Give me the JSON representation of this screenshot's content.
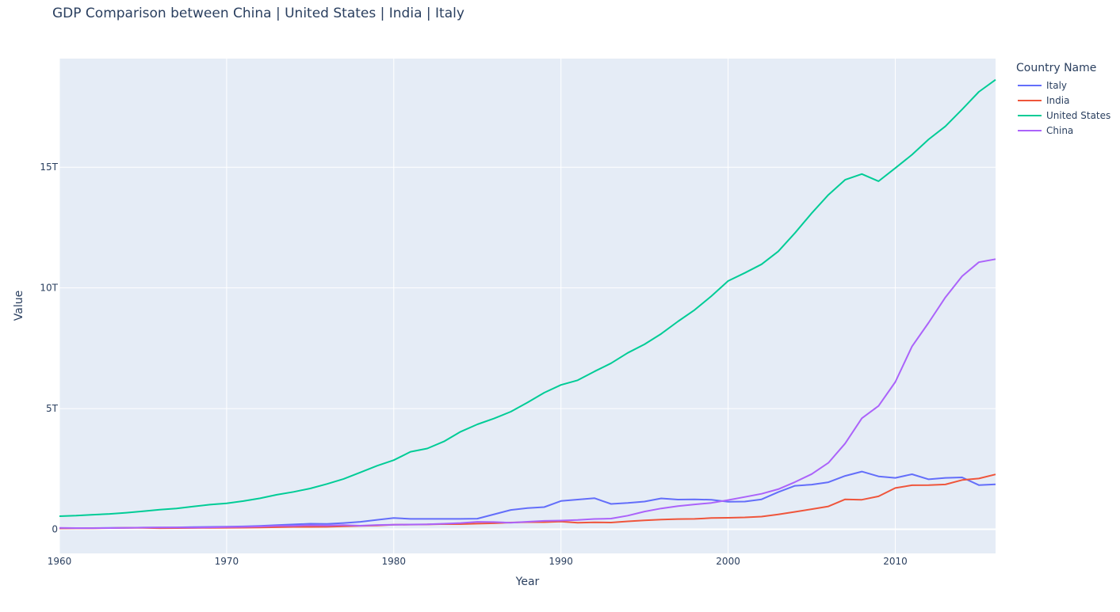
{
  "chart_data": {
    "type": "line",
    "title": "GDP Comparison between China | United States | India | Italy",
    "xlabel": "Year",
    "ylabel": "Value",
    "xlim": [
      1960,
      2016
    ],
    "ylim": [
      -1000000000000,
      19500000000000
    ],
    "x_ticks": [
      {
        "value": 1960,
        "label": "1960"
      },
      {
        "value": 1970,
        "label": "1970"
      },
      {
        "value": 1980,
        "label": "1980"
      },
      {
        "value": 1990,
        "label": "1990"
      },
      {
        "value": 2000,
        "label": "2000"
      },
      {
        "value": 2010,
        "label": "2010"
      }
    ],
    "y_ticks": [
      {
        "value": 0,
        "label": "0"
      },
      {
        "value": 5000000000000,
        "label": "5T"
      },
      {
        "value": 10000000000000,
        "label": "10T"
      },
      {
        "value": 15000000000000,
        "label": "15T"
      }
    ],
    "grid": true,
    "legend_title": "Country Name",
    "legend_position": "top-right",
    "x": [
      1960,
      1961,
      1962,
      1963,
      1964,
      1965,
      1966,
      1967,
      1968,
      1969,
      1970,
      1971,
      1972,
      1973,
      1974,
      1975,
      1976,
      1977,
      1978,
      1979,
      1980,
      1981,
      1982,
      1983,
      1984,
      1985,
      1986,
      1987,
      1988,
      1989,
      1990,
      1991,
      1992,
      1993,
      1994,
      1995,
      1996,
      1997,
      1998,
      1999,
      2000,
      2001,
      2002,
      2003,
      2004,
      2005,
      2006,
      2007,
      2008,
      2009,
      2010,
      2011,
      2012,
      2013,
      2014,
      2015,
      2016
    ],
    "series": [
      {
        "name": "Italy",
        "color": "#636efa",
        "values_T": [
          0.04,
          0.045,
          0.05,
          0.056,
          0.062,
          0.068,
          0.074,
          0.08,
          0.088,
          0.1,
          0.11,
          0.12,
          0.14,
          0.17,
          0.2,
          0.23,
          0.22,
          0.26,
          0.31,
          0.39,
          0.47,
          0.43,
          0.43,
          0.43,
          0.43,
          0.44,
          0.62,
          0.8,
          0.88,
          0.92,
          1.17,
          1.23,
          1.29,
          1.05,
          1.09,
          1.15,
          1.28,
          1.23,
          1.24,
          1.22,
          1.14,
          1.15,
          1.24,
          1.54,
          1.8,
          1.85,
          1.95,
          2.21,
          2.39,
          2.19,
          2.13,
          2.28,
          2.07,
          2.13,
          2.15,
          1.83,
          1.86
        ]
      },
      {
        "name": "India",
        "color": "#ef553b",
        "values_T": [
          0.037,
          0.039,
          0.042,
          0.049,
          0.056,
          0.059,
          0.046,
          0.05,
          0.053,
          0.058,
          0.063,
          0.067,
          0.071,
          0.085,
          0.099,
          0.098,
          0.103,
          0.121,
          0.137,
          0.153,
          0.186,
          0.193,
          0.2,
          0.218,
          0.212,
          0.233,
          0.249,
          0.279,
          0.297,
          0.296,
          0.321,
          0.27,
          0.288,
          0.279,
          0.327,
          0.367,
          0.4,
          0.423,
          0.429,
          0.467,
          0.476,
          0.494,
          0.524,
          0.618,
          0.722,
          0.834,
          0.949,
          1.239,
          1.224,
          1.365,
          1.708,
          1.823,
          1.828,
          1.857,
          2.039,
          2.104,
          2.274
        ]
      },
      {
        "name": "United States",
        "color": "#00cc96",
        "values_T": [
          0.543,
          0.563,
          0.605,
          0.638,
          0.686,
          0.744,
          0.815,
          0.862,
          0.943,
          1.019,
          1.075,
          1.168,
          1.282,
          1.429,
          1.549,
          1.689,
          1.877,
          2.086,
          2.357,
          2.632,
          2.863,
          3.211,
          3.345,
          3.638,
          4.041,
          4.347,
          4.59,
          4.87,
          5.253,
          5.658,
          5.98,
          6.174,
          6.539,
          6.879,
          7.309,
          7.664,
          8.1,
          8.609,
          9.089,
          9.661,
          10.285,
          10.622,
          10.978,
          11.511,
          12.275,
          13.094,
          13.856,
          14.478,
          14.719,
          14.419,
          14.964,
          15.518,
          16.155,
          16.692,
          17.393,
          18.121,
          18.625
        ]
      },
      {
        "name": "China",
        "color": "#ab63fa",
        "values_T": [
          0.06,
          0.05,
          0.047,
          0.05,
          0.059,
          0.07,
          0.076,
          0.072,
          0.07,
          0.079,
          0.093,
          0.1,
          0.114,
          0.139,
          0.144,
          0.163,
          0.154,
          0.175,
          0.149,
          0.178,
          0.191,
          0.196,
          0.205,
          0.231,
          0.26,
          0.309,
          0.3,
          0.273,
          0.312,
          0.348,
          0.361,
          0.383,
          0.427,
          0.444,
          0.564,
          0.734,
          0.863,
          0.962,
          1.029,
          1.094,
          1.211,
          1.339,
          1.471,
          1.66,
          1.955,
          2.286,
          2.752,
          3.552,
          4.598,
          5.11,
          6.101,
          7.573,
          8.561,
          9.607,
          10.482,
          11.065,
          11.191
        ]
      }
    ]
  }
}
